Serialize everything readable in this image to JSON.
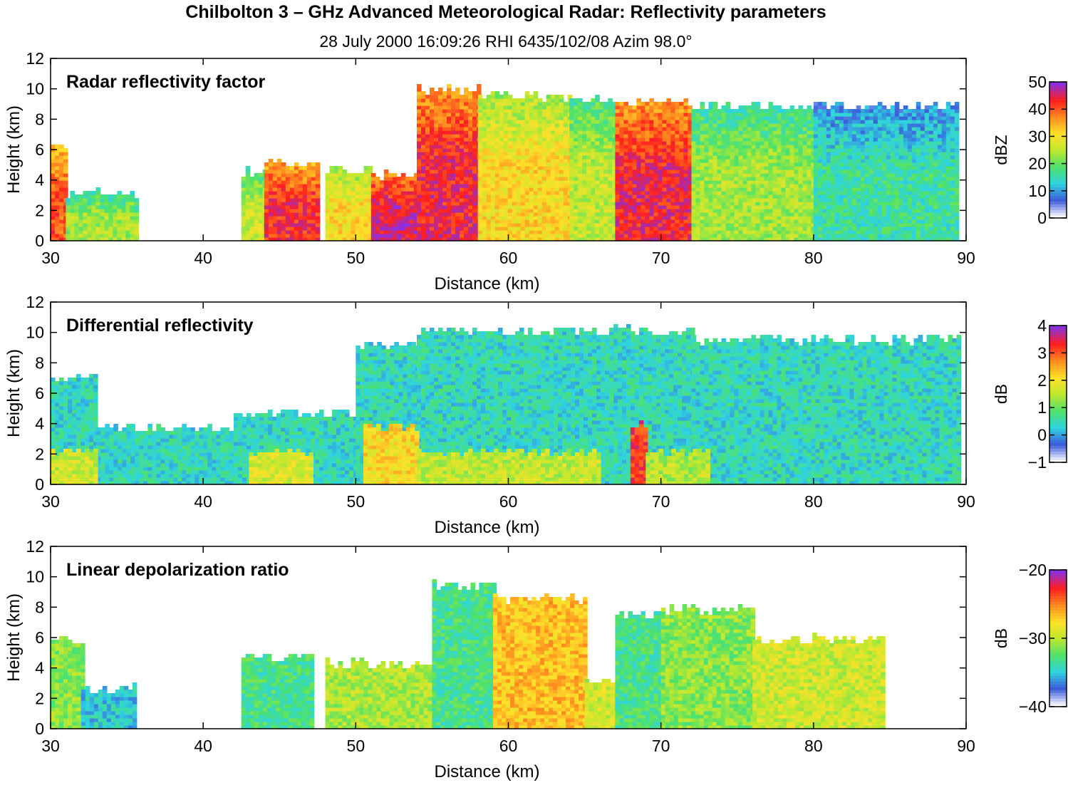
{
  "figure": {
    "title": "Chilbolton 3 – GHz Advanced Meteorological Radar: Reflectivity parameters",
    "subtitle": "28 July 2000 16:09:26 RHI 6435/102/08 Azim 98.0°"
  },
  "colormap": [
    "#ffffff",
    "#3b5bdc",
    "#2fd4e0",
    "#4ee26a",
    "#bfe82e",
    "#ffe02a",
    "#ff8a1e",
    "#ff1e1e",
    "#8b2fe0"
  ],
  "chart_data": [
    {
      "type": "heatmap",
      "panel_label": "Radar reflectivity factor",
      "xlabel": "Distance (km)",
      "ylabel": "Height (km)",
      "xlim": [
        30,
        90
      ],
      "ylim": [
        0,
        12
      ],
      "xticks": [
        30,
        40,
        50,
        60,
        70,
        80,
        90
      ],
      "yticks": [
        0,
        2,
        4,
        6,
        8,
        10,
        12
      ],
      "colorbar": {
        "label": "dBZ",
        "min": 0,
        "max": 50,
        "ticks": [
          0,
          10,
          20,
          30,
          40,
          50
        ]
      },
      "value_range": [
        0,
        50
      ],
      "echo_columns": [
        {
          "x": [
            30,
            31
          ],
          "top": 6.2,
          "value": 40
        },
        {
          "x": [
            31,
            35.5
          ],
          "top": 3.0,
          "value": 22
        },
        {
          "x": [
            42.5,
            44
          ],
          "top": 4.4,
          "value": 25
        },
        {
          "x": [
            44,
            47.5
          ],
          "top": 5.0,
          "value": 43
        },
        {
          "x": [
            48,
            51
          ],
          "top": 4.6,
          "value": 30
        },
        {
          "x": [
            51,
            54
          ],
          "top": 4.2,
          "value": 46
        },
        {
          "x": [
            54,
            58
          ],
          "top": 9.8,
          "value": 44
        },
        {
          "x": [
            58,
            64
          ],
          "top": 9.4,
          "value": 30
        },
        {
          "x": [
            64,
            67
          ],
          "top": 9.2,
          "value": 24
        },
        {
          "x": [
            67,
            72
          ],
          "top": 9.0,
          "value": 44
        },
        {
          "x": [
            72,
            80
          ],
          "top": 8.8,
          "value": 22
        },
        {
          "x": [
            80,
            89.5
          ],
          "top": 8.8,
          "value": 14
        }
      ]
    },
    {
      "type": "heatmap",
      "panel_label": "Differential reflectivity",
      "xlabel": "Distance (km)",
      "ylabel": "Height (km)",
      "xlim": [
        30,
        90
      ],
      "ylim": [
        0,
        12
      ],
      "xticks": [
        30,
        40,
        50,
        60,
        70,
        80,
        90
      ],
      "yticks": [
        0,
        2,
        4,
        6,
        8,
        10,
        12
      ],
      "colorbar": {
        "label": "dB",
        "min": -1,
        "max": 4,
        "ticks": [
          -1,
          0,
          1,
          2,
          3,
          4
        ]
      },
      "value_range": [
        -1,
        4
      ],
      "echo_columns": [
        {
          "x": [
            30,
            33
          ],
          "top": 6.8,
          "value": 0.2
        },
        {
          "x": [
            33,
            42
          ],
          "top": 3.6,
          "value": 0.2
        },
        {
          "x": [
            42,
            50
          ],
          "top": 4.6,
          "value": 0.2
        },
        {
          "x": [
            50,
            54
          ],
          "top": 9.0,
          "value": 0.2
        },
        {
          "x": [
            54,
            72
          ],
          "top": 10.0,
          "value": 0.2
        },
        {
          "x": [
            72,
            89.5
          ],
          "top": 9.4,
          "value": 0.2
        },
        {
          "x": [
            30,
            33
          ],
          "top": 2.0,
          "value": 1.5
        },
        {
          "x": [
            43,
            47
          ],
          "top": 2.0,
          "value": 1.6
        },
        {
          "x": [
            50.5,
            54
          ],
          "top": 3.6,
          "value": 2.0
        },
        {
          "x": [
            54,
            66
          ],
          "top": 2.0,
          "value": 1.4
        },
        {
          "x": [
            68,
            69
          ],
          "top": 3.8,
          "value": 3.2
        },
        {
          "x": [
            69,
            73
          ],
          "top": 2.0,
          "value": 1.3
        }
      ]
    },
    {
      "type": "heatmap",
      "panel_label": "Linear depolarization ratio",
      "xlabel": "Distance (km)",
      "ylabel": "Height (km)",
      "xlim": [
        30,
        90
      ],
      "ylim": [
        0,
        12
      ],
      "xticks": [
        30,
        40,
        50,
        60,
        70,
        80,
        90
      ],
      "yticks": [
        0,
        2,
        4,
        6,
        8,
        10,
        12
      ],
      "colorbar": {
        "label": "dB",
        "min": -40,
        "max": -20,
        "ticks": [
          -40,
          -30,
          -20
        ]
      },
      "value_range": [
        -40,
        -20
      ],
      "echo_columns": [
        {
          "x": [
            30,
            32
          ],
          "top": 5.6,
          "value": -32
        },
        {
          "x": [
            32,
            35.5
          ],
          "top": 2.6,
          "value": -36
        },
        {
          "x": [
            42.5,
            47
          ],
          "top": 4.6,
          "value": -34
        },
        {
          "x": [
            48,
            55
          ],
          "top": 4.2,
          "value": -31
        },
        {
          "x": [
            55,
            59
          ],
          "top": 9.4,
          "value": -34
        },
        {
          "x": [
            59,
            65
          ],
          "top": 8.4,
          "value": -27
        },
        {
          "x": [
            65,
            67
          ],
          "top": 3.0,
          "value": -30
        },
        {
          "x": [
            67,
            70
          ],
          "top": 7.4,
          "value": -34
        },
        {
          "x": [
            70,
            76
          ],
          "top": 7.8,
          "value": -32
        },
        {
          "x": [
            76,
            84.5
          ],
          "top": 5.8,
          "value": -30
        }
      ]
    }
  ]
}
